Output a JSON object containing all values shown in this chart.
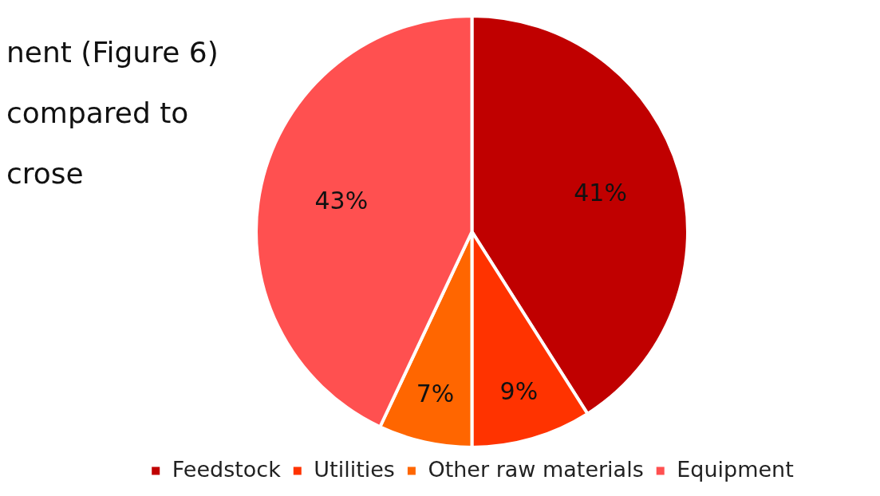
{
  "chart_data": {
    "type": "pie",
    "categories": [
      "Feedstock",
      "Utilities",
      "Other raw materials",
      "Equipment"
    ],
    "values": [
      41,
      9,
      7,
      43
    ],
    "colors": [
      "#c00000",
      "#ff3300",
      "#ff6600",
      "#ff5050"
    ],
    "value_labels": [
      "41%",
      "9%",
      "7%",
      "43%"
    ],
    "legend": "bottom",
    "annotations": [
      "nent (Figure 6)",
      "compared to",
      "crose"
    ]
  }
}
